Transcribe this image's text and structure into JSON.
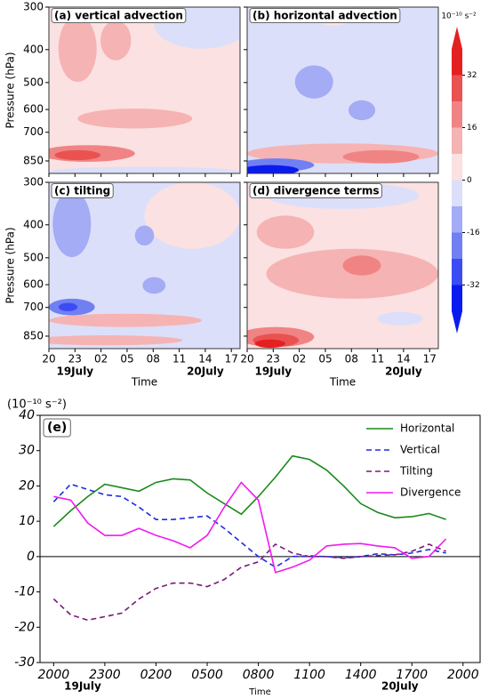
{
  "chart_data": [
    {
      "type": "contour",
      "panels": [
        {
          "label": "(a) vertical advection"
        },
        {
          "label": "(b) horizontal advection"
        },
        {
          "label": "(c) tilting"
        },
        {
          "label": "(d) divergence terms"
        }
      ],
      "ylabel": "Pressure (hPa)",
      "xlabel": "Time",
      "ylim": [
        300,
        925
      ],
      "ylog": true,
      "yinvert": true,
      "yticks": [
        300,
        400,
        500,
        600,
        700,
        850
      ],
      "xlim": [
        0,
        22
      ],
      "xticks": [
        {
          "value": 0,
          "label": "20"
        },
        {
          "value": 3,
          "label": "23"
        },
        {
          "value": 6,
          "label": "02"
        },
        {
          "value": 9,
          "label": "05"
        },
        {
          "value": 12,
          "label": "08"
        },
        {
          "value": 15,
          "label": "11"
        },
        {
          "value": 18,
          "label": "14"
        },
        {
          "value": 21,
          "label": "17"
        }
      ],
      "date_labels": [
        {
          "text": "19July",
          "x": 3
        },
        {
          "text": "20July",
          "x": 18
        }
      ],
      "colorbar": {
        "units": "10⁻¹⁰ s⁻²",
        "levels": [
          -40,
          -32,
          -24,
          -16,
          -8,
          0,
          8,
          16,
          24,
          32,
          40
        ],
        "colors": [
          "#0a1bf0",
          "#3c4cf2",
          "#7080f3",
          "#a3acf4",
          "#dcdff9",
          "#fbe1e1",
          "#f6b3b3",
          "#f08484",
          "#ea5252",
          "#e42020"
        ],
        "ticks": [
          32,
          16,
          0,
          -16,
          -32
        ]
      }
    },
    {
      "type": "line",
      "units": "(10⁻¹⁰ s⁻²)",
      "panel_label": "(e)",
      "xlabel": "Time",
      "x": [
        0,
        1,
        2,
        3,
        4,
        5,
        6,
        7,
        8,
        9,
        10,
        11,
        12,
        13,
        14,
        15,
        16,
        17,
        18,
        19,
        20,
        21,
        22,
        23
      ],
      "xlim": [
        -0.8,
        25
      ],
      "xticks": [
        {
          "value": 0,
          "label": "2000"
        },
        {
          "value": 3,
          "label": "2300"
        },
        {
          "value": 6,
          "label": "0200"
        },
        {
          "value": 9,
          "label": "0500"
        },
        {
          "value": 12,
          "label": "0800"
        },
        {
          "value": 15,
          "label": "1100"
        },
        {
          "value": 18,
          "label": "1400"
        },
        {
          "value": 21,
          "label": "1700"
        },
        {
          "value": 24,
          "label": "2000"
        }
      ],
      "ylim": [
        -30,
        40
      ],
      "yticks": [
        -30,
        -20,
        -10,
        0,
        10,
        20,
        30,
        40
      ],
      "date_labels": [
        {
          "text": "19July",
          "x": 1.7
        },
        {
          "text": "20July",
          "x": 20.3
        }
      ],
      "legend": "upper right",
      "series": [
        {
          "name": "Horizontal",
          "color": "#1a8a1a",
          "dash": false,
          "values": [
            8.5,
            13,
            17,
            20.5,
            19.5,
            18.5,
            21,
            22,
            21.7,
            18,
            15,
            12,
            17,
            22.5,
            28.5,
            27.5,
            24.5,
            20,
            15,
            12.5,
            11,
            11.3,
            12.2,
            10.5
          ]
        },
        {
          "name": "Vertical",
          "color": "#1a2fe0",
          "dash": true,
          "values": [
            15.5,
            20.5,
            19,
            17.5,
            17,
            14,
            10.5,
            10.5,
            11,
            11.5,
            8,
            4,
            0,
            -3,
            0,
            0.2,
            0,
            -0.3,
            0,
            0.8,
            0.5,
            1,
            2,
            1
          ]
        },
        {
          "name": "Tilting",
          "color": "#7a1a7a",
          "dash": true,
          "values": [
            -12,
            -16.5,
            -18,
            -17,
            -16,
            -12,
            -9,
            -7.5,
            -7.5,
            -8.5,
            -6.5,
            -3,
            -1.5,
            3.5,
            1,
            0,
            0,
            -0.5,
            0,
            0.3,
            0.5,
            1.5,
            3.5,
            1.5
          ]
        },
        {
          "name": "Divergence",
          "color": "#f01af0",
          "dash": false,
          "values": [
            17,
            16,
            9.5,
            6,
            6,
            8,
            6,
            4.5,
            2.5,
            6,
            14,
            21,
            16,
            -4.5,
            -3,
            -1,
            3,
            3.5,
            3.7,
            3,
            2.5,
            -0.5,
            0,
            5
          ]
        }
      ]
    }
  ]
}
